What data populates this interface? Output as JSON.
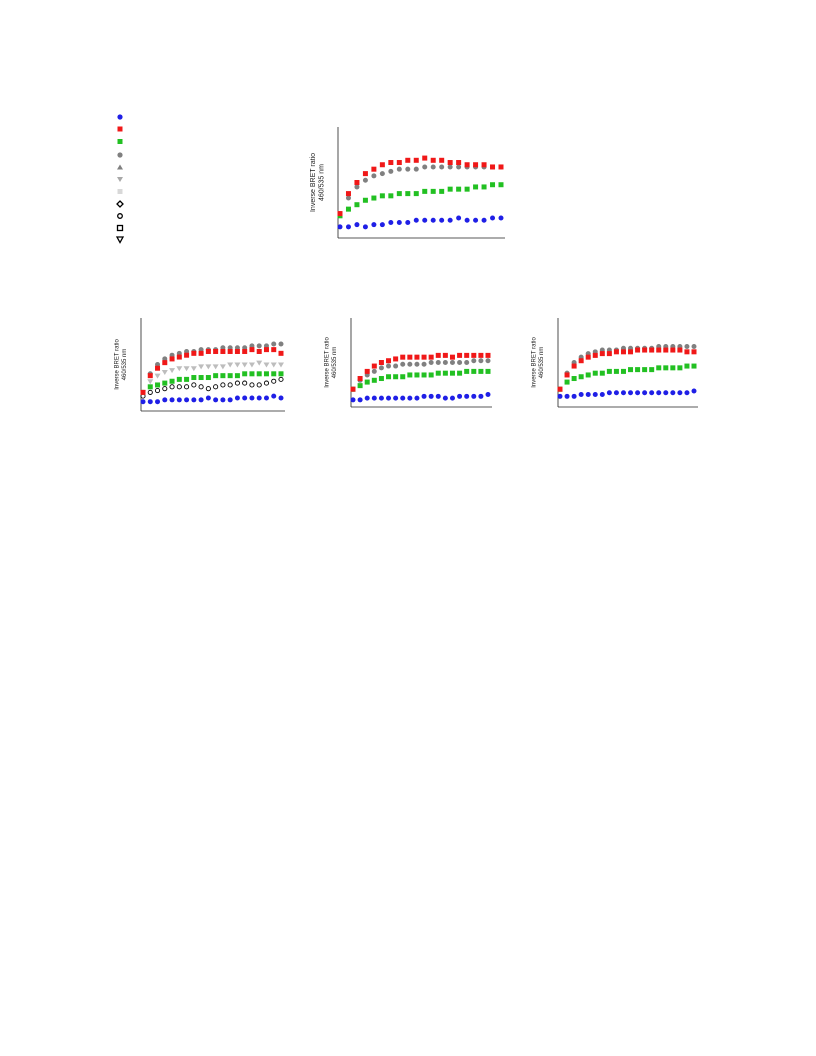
{
  "chart_data": [
    {
      "type": "scatter",
      "y_label": [
        "Inverse BRET ratio",
        "460/535 nm"
      ],
      "x": [
        0,
        1,
        2,
        3,
        4,
        5,
        6,
        7,
        8,
        9,
        10,
        11,
        12,
        13,
        14,
        15,
        16,
        17,
        18,
        19
      ],
      "xlim": [
        0,
        19
      ],
      "ylim": [
        0,
        5
      ],
      "series": [
        {
          "color": "#1f1fe6",
          "marker": "circle",
          "values": [
            0.5,
            0.5,
            0.6,
            0.5,
            0.6,
            0.6,
            0.7,
            0.7,
            0.7,
            0.8,
            0.8,
            0.8,
            0.8,
            0.8,
            0.9,
            0.8,
            0.8,
            0.8,
            0.9,
            0.9
          ]
        },
        {
          "color": "#808080",
          "marker": "circle",
          "values": [
            1.1,
            1.8,
            2.3,
            2.6,
            2.8,
            2.9,
            3.0,
            3.1,
            3.1,
            3.1,
            3.2,
            3.2,
            3.2,
            3.2,
            3.2,
            3.2,
            3.2,
            3.2,
            3.2,
            3.2
          ]
        },
        {
          "color": "#22c022",
          "marker": "square",
          "values": [
            1.0,
            1.3,
            1.5,
            1.7,
            1.8,
            1.9,
            1.9,
            2.0,
            2.0,
            2.0,
            2.1,
            2.1,
            2.1,
            2.2,
            2.2,
            2.2,
            2.3,
            2.3,
            2.4,
            2.4
          ]
        },
        {
          "color": "#f01818",
          "marker": "square",
          "values": [
            1.1,
            2.0,
            2.5,
            2.9,
            3.1,
            3.3,
            3.4,
            3.4,
            3.5,
            3.5,
            3.6,
            3.5,
            3.5,
            3.4,
            3.4,
            3.3,
            3.3,
            3.3,
            3.2,
            3.2
          ]
        }
      ]
    },
    {
      "type": "scatter",
      "y_label": [
        "Inverse BRET ratio",
        "460/535 nm"
      ],
      "x": [
        0,
        1,
        2,
        3,
        4,
        5,
        6,
        7,
        8,
        9,
        10,
        11,
        12,
        13,
        14,
        15,
        16,
        17,
        18,
        19
      ],
      "xlim": [
        0,
        19
      ],
      "ylim": [
        0,
        5
      ],
      "series": [
        {
          "color": "#1f1fe6",
          "marker": "circle",
          "values": [
            0.5,
            0.5,
            0.5,
            0.6,
            0.6,
            0.6,
            0.6,
            0.6,
            0.6,
            0.7,
            0.6,
            0.6,
            0.6,
            0.7,
            0.7,
            0.7,
            0.7,
            0.7,
            0.8,
            0.7
          ]
        },
        {
          "color": "#000000",
          "marker": "open-circle",
          "values": [
            0.8,
            1.0,
            1.1,
            1.2,
            1.3,
            1.3,
            1.3,
            1.4,
            1.3,
            1.2,
            1.3,
            1.4,
            1.4,
            1.5,
            1.5,
            1.4,
            1.4,
            1.5,
            1.6,
            1.7
          ]
        },
        {
          "color": "#22c022",
          "marker": "square",
          "values": [
            1.0,
            1.3,
            1.4,
            1.5,
            1.6,
            1.7,
            1.7,
            1.8,
            1.8,
            1.8,
            1.9,
            1.9,
            1.9,
            1.9,
            2.0,
            2.0,
            2.0,
            2.0,
            2.0,
            2.0
          ]
        },
        {
          "color": "#bdbdbd",
          "marker": "tri-down",
          "values": [
            1.0,
            1.6,
            1.9,
            2.1,
            2.2,
            2.3,
            2.3,
            2.3,
            2.4,
            2.4,
            2.4,
            2.4,
            2.5,
            2.5,
            2.5,
            2.5,
            2.6,
            2.5,
            2.5,
            2.5
          ]
        },
        {
          "color": "#808080",
          "marker": "circle",
          "values": [
            1.0,
            2.0,
            2.5,
            2.8,
            3.0,
            3.1,
            3.2,
            3.2,
            3.3,
            3.3,
            3.3,
            3.4,
            3.4,
            3.4,
            3.4,
            3.5,
            3.5,
            3.5,
            3.6,
            3.6
          ]
        },
        {
          "color": "#f01818",
          "marker": "square",
          "values": [
            1.0,
            1.9,
            2.3,
            2.6,
            2.8,
            2.9,
            3.0,
            3.1,
            3.1,
            3.2,
            3.2,
            3.2,
            3.2,
            3.2,
            3.2,
            3.3,
            3.2,
            3.3,
            3.3,
            3.1
          ]
        }
      ]
    },
    {
      "type": "scatter",
      "y_label": [
        "Inverse BRET ratio",
        "460/535 nm"
      ],
      "x": [
        0,
        1,
        2,
        3,
        4,
        5,
        6,
        7,
        8,
        9,
        10,
        11,
        12,
        13,
        14,
        15,
        16,
        17,
        18,
        19
      ],
      "xlim": [
        0,
        19
      ],
      "ylim": [
        0,
        5
      ],
      "series": [
        {
          "color": "#1f1fe6",
          "marker": "circle",
          "values": [
            0.4,
            0.4,
            0.5,
            0.5,
            0.5,
            0.5,
            0.5,
            0.5,
            0.5,
            0.5,
            0.6,
            0.6,
            0.6,
            0.5,
            0.5,
            0.6,
            0.6,
            0.6,
            0.6,
            0.7
          ]
        },
        {
          "color": "#808080",
          "marker": "circle",
          "values": [
            1.0,
            1.5,
            1.8,
            2.0,
            2.2,
            2.3,
            2.3,
            2.4,
            2.4,
            2.4,
            2.4,
            2.5,
            2.5,
            2.5,
            2.5,
            2.5,
            2.5,
            2.6,
            2.6,
            2.6
          ]
        },
        {
          "color": "#22c022",
          "marker": "square",
          "values": [
            1.0,
            1.2,
            1.4,
            1.5,
            1.6,
            1.7,
            1.7,
            1.7,
            1.8,
            1.8,
            1.8,
            1.8,
            1.9,
            1.9,
            1.9,
            1.9,
            2.0,
            2.0,
            2.0,
            2.0
          ]
        },
        {
          "color": "#f01818",
          "marker": "square",
          "values": [
            1.0,
            1.6,
            2.0,
            2.3,
            2.5,
            2.6,
            2.7,
            2.8,
            2.8,
            2.8,
            2.8,
            2.8,
            2.9,
            2.9,
            2.8,
            2.9,
            2.9,
            2.9,
            2.9,
            2.9
          ]
        }
      ]
    },
    {
      "type": "scatter",
      "y_label": [
        "Inverse BRET ratio",
        "460/535 nm"
      ],
      "x": [
        0,
        1,
        2,
        3,
        4,
        5,
        6,
        7,
        8,
        9,
        10,
        11,
        12,
        13,
        14,
        15,
        16,
        17,
        18,
        19
      ],
      "xlim": [
        0,
        19
      ],
      "ylim": [
        0,
        5
      ],
      "series": [
        {
          "color": "#1f1fe6",
          "marker": "circle",
          "values": [
            0.6,
            0.6,
            0.6,
            0.7,
            0.7,
            0.7,
            0.7,
            0.8,
            0.8,
            0.8,
            0.8,
            0.8,
            0.8,
            0.8,
            0.8,
            0.8,
            0.8,
            0.8,
            0.8,
            0.9
          ]
        },
        {
          "color": "#22c022",
          "marker": "square",
          "values": [
            1.0,
            1.4,
            1.6,
            1.7,
            1.8,
            1.9,
            1.9,
            2.0,
            2.0,
            2.0,
            2.1,
            2.1,
            2.1,
            2.1,
            2.2,
            2.2,
            2.2,
            2.2,
            2.3,
            2.3
          ]
        },
        {
          "color": "#808080",
          "marker": "circle",
          "values": [
            1.0,
            1.9,
            2.5,
            2.8,
            3.0,
            3.1,
            3.2,
            3.2,
            3.2,
            3.3,
            3.3,
            3.3,
            3.3,
            3.3,
            3.4,
            3.4,
            3.4,
            3.4,
            3.4,
            3.4
          ]
        },
        {
          "color": "#f01818",
          "marker": "square",
          "values": [
            1.0,
            1.8,
            2.3,
            2.6,
            2.8,
            2.9,
            3.0,
            3.0,
            3.1,
            3.1,
            3.1,
            3.2,
            3.2,
            3.2,
            3.2,
            3.2,
            3.2,
            3.2,
            3.1,
            3.1
          ]
        }
      ]
    }
  ]
}
